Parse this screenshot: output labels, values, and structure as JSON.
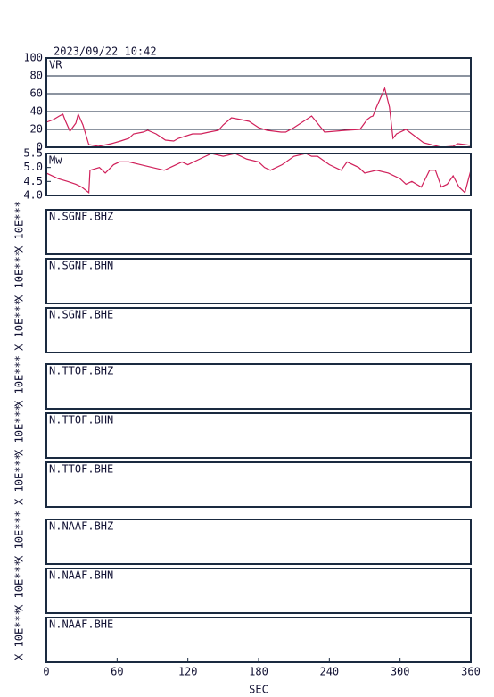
{
  "timestamp": "2023/09/22 10:42",
  "chart_data": [
    {
      "type": "line",
      "label": "VR",
      "xlim": [
        0,
        360
      ],
      "ylim": [
        0,
        100
      ],
      "yticks": [
        0,
        20,
        40,
        60,
        80,
        100
      ],
      "grid": true,
      "color": "#d0205a",
      "x": [
        0,
        6,
        11,
        14,
        16,
        20,
        25,
        27,
        31,
        36,
        44,
        55,
        63,
        70,
        74,
        82,
        86,
        93,
        101,
        108,
        112,
        124,
        131,
        138,
        146,
        150,
        157,
        165,
        172,
        180,
        187,
        199,
        203,
        210,
        225,
        236,
        254,
        266,
        272,
        275,
        277,
        280,
        287,
        291,
        294,
        297,
        305,
        320,
        335,
        345,
        349,
        355,
        360
      ],
      "values": [
        28,
        31,
        35,
        37,
        30,
        18,
        27,
        37,
        25,
        3,
        1,
        4,
        7,
        10,
        15,
        17,
        19,
        15,
        8,
        7,
        10,
        15,
        15,
        17,
        19,
        25,
        33,
        31,
        29,
        22,
        19,
        17,
        17,
        22,
        35,
        17,
        19,
        20,
        31,
        34,
        35,
        45,
        66,
        45,
        10,
        15,
        20,
        5,
        0,
        1,
        4,
        3,
        2
      ]
    },
    {
      "type": "line",
      "label": "Mw",
      "xlim": [
        0,
        360
      ],
      "ylim": [
        4.0,
        5.5
      ],
      "yticks": [
        {
          "value": 4.0,
          "label": "4.0"
        },
        4.5,
        {
          "value": 5.0,
          "label": "5.0"
        },
        5.5
      ],
      "grid": false,
      "color": "#d0205a",
      "x": [
        0,
        5,
        10,
        18,
        25,
        30,
        36,
        37,
        45,
        50,
        57,
        62,
        70,
        80,
        90,
        100,
        110,
        115,
        120,
        130,
        140,
        150,
        160,
        170,
        180,
        185,
        190,
        200,
        210,
        220,
        225,
        230,
        240,
        250,
        255,
        265,
        270,
        280,
        290,
        300,
        305,
        310,
        318,
        325,
        330,
        335,
        340,
        345,
        350,
        355,
        360
      ],
      "values": [
        4.8,
        4.7,
        4.6,
        4.5,
        4.4,
        4.3,
        4.1,
        4.9,
        5.0,
        4.8,
        5.1,
        5.2,
        5.2,
        5.1,
        5.0,
        4.9,
        5.1,
        5.2,
        5.1,
        5.3,
        5.5,
        5.4,
        5.5,
        5.3,
        5.2,
        5.0,
        4.9,
        5.1,
        5.4,
        5.5,
        5.4,
        5.4,
        5.1,
        4.9,
        5.2,
        5.0,
        4.8,
        4.9,
        4.8,
        4.6,
        4.4,
        4.5,
        4.3,
        4.9,
        4.9,
        4.3,
        4.4,
        4.7,
        4.3,
        4.1,
        4.9
      ]
    },
    {
      "type": "waveform",
      "label": "N.SGNF.BHZ",
      "scale_label": "X 10E***"
    },
    {
      "type": "waveform",
      "label": "N.SGNF.BHN",
      "scale_label": "X 10E***"
    },
    {
      "type": "waveform",
      "label": "N.SGNF.BHE",
      "scale_label": "X 10E***"
    },
    {
      "type": "waveform",
      "label": "N.TTOF.BHZ",
      "scale_label": "X 10E***"
    },
    {
      "type": "waveform",
      "label": "N.TTOF.BHN",
      "scale_label": "X 10E***"
    },
    {
      "type": "waveform",
      "label": "N.TTOF.BHE",
      "scale_label": "X 10E***"
    },
    {
      "type": "waveform",
      "label": "N.NAAF.BHZ",
      "scale_label": "X 10E***"
    },
    {
      "type": "waveform",
      "label": "N.NAAF.BHN",
      "scale_label": "X 10E***"
    },
    {
      "type": "waveform",
      "label": "N.NAAF.BHE",
      "scale_label": "X 10E***",
      "xlim": [
        0,
        360
      ],
      "xticks": [
        0,
        60,
        120,
        180,
        240,
        300,
        360
      ],
      "xlabel": "SEC"
    }
  ]
}
